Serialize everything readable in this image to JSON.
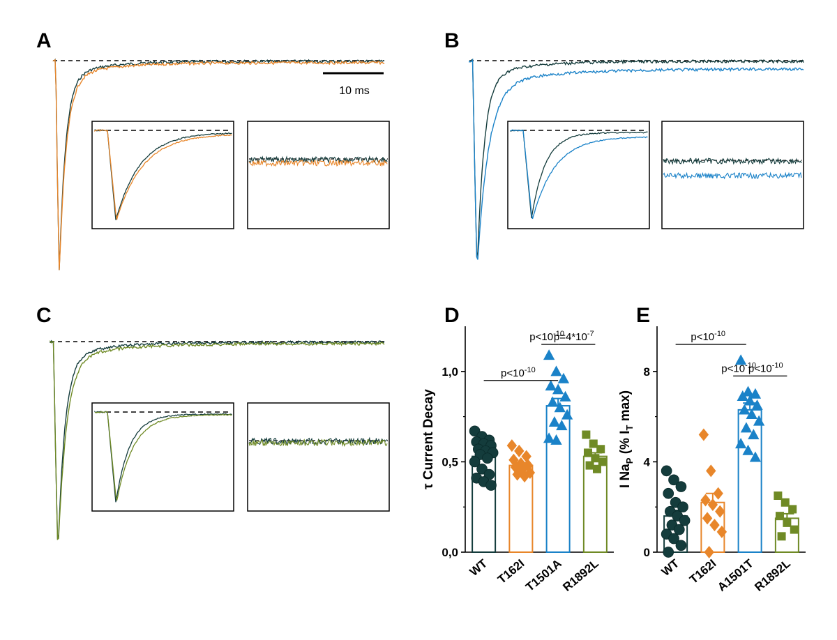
{
  "colors": {
    "WT": "#143c3c",
    "T162I": "#e8862a",
    "T1501A": "#1a82c8",
    "A1501T": "#1a82c8",
    "R1892L": "#6f8a25",
    "axis": "#000000"
  },
  "panels": {
    "A": {
      "label": "A",
      "scale_bar": "10 ms"
    },
    "B": {
      "label": "B"
    },
    "C": {
      "label": "C"
    },
    "D": {
      "label": "D"
    },
    "E": {
      "label": "E"
    }
  },
  "chart_data": [
    {
      "panel": "D",
      "type": "bar",
      "ylabel": "τ Current Decay",
      "ylim": [
        0,
        1.25
      ],
      "yticks": [
        0,
        0.5,
        1.0
      ],
      "ytick_labels": [
        "0,0",
        "0,5",
        "1,0"
      ],
      "categories": [
        "WT",
        "T162I",
        "T1501A",
        "R1892L"
      ],
      "series": [
        {
          "category": "WT",
          "marker": "circle",
          "color_key": "WT",
          "mean": 0.53,
          "sem": 0.025,
          "points": [
            0.67,
            0.64,
            0.62,
            0.61,
            0.6,
            0.59,
            0.57,
            0.56,
            0.55,
            0.54,
            0.52,
            0.5,
            0.46,
            0.43,
            0.41,
            0.39,
            0.37
          ]
        },
        {
          "category": "T162I",
          "marker": "diamond",
          "color_key": "T162I",
          "mean": 0.48,
          "sem": 0.015,
          "points": [
            0.59,
            0.56,
            0.53,
            0.51,
            0.49,
            0.48,
            0.47,
            0.46,
            0.44,
            0.43,
            0.42
          ]
        },
        {
          "category": "T1501A",
          "marker": "triangle",
          "color_key": "T1501A",
          "mean": 0.81,
          "sem": 0.04,
          "points": [
            1.09,
            1.0,
            0.96,
            0.92,
            0.9,
            0.86,
            0.83,
            0.8,
            0.76,
            0.72,
            0.7,
            0.63,
            0.62
          ]
        },
        {
          "category": "R1892L",
          "marker": "square",
          "color_key": "R1892L",
          "mean": 0.53,
          "sem": 0.02,
          "points": [
            0.65,
            0.6,
            0.57,
            0.55,
            0.52,
            0.5,
            0.48,
            0.46
          ]
        }
      ],
      "annotations": [
        {
          "text": "p<10",
          "sup": "-10",
          "from": 0,
          "to": 2,
          "y": 0.95
        },
        {
          "text": "p<10",
          "sup": "-10",
          "from": 1.55,
          "to": 2,
          "y": 1.15
        },
        {
          "text": "p=4*10",
          "sup": "-7",
          "from": 2,
          "to": 3,
          "y": 1.15
        }
      ]
    },
    {
      "panel": "E",
      "type": "bar",
      "ylabel_parts": {
        "a": "I Na",
        "a_sub": "P",
        "b": " (% I",
        "b_sub": "T",
        "c": " max)"
      },
      "ylim": [
        0,
        10
      ],
      "yticks": [
        0,
        4,
        8
      ],
      "ytick_labels": [
        "0",
        "4",
        "8"
      ],
      "categories": [
        "WT",
        "T162I",
        "A1501T",
        "R1892L"
      ],
      "series": [
        {
          "category": "WT",
          "marker": "circle",
          "color_key": "WT",
          "mean": 1.6,
          "sem": 0.25,
          "points": [
            3.6,
            3.2,
            2.9,
            2.6,
            2.2,
            2.0,
            1.8,
            1.6,
            1.4,
            1.2,
            1.0,
            0.8,
            0.6,
            0.3,
            0.0
          ]
        },
        {
          "category": "T162I",
          "marker": "diamond",
          "color_key": "T162I",
          "mean": 2.2,
          "sem": 0.4,
          "points": [
            5.2,
            3.6,
            2.6,
            2.3,
            2.1,
            1.8,
            1.5,
            1.2,
            0.9,
            0.0
          ]
        },
        {
          "category": "A1501T",
          "marker": "triangle",
          "color_key": "A1501T",
          "mean": 6.3,
          "sem": 0.3,
          "points": [
            8.5,
            7.1,
            7.0,
            6.9,
            6.7,
            6.5,
            6.3,
            6.1,
            5.8,
            5.5,
            5.2,
            4.8,
            4.5,
            4.2
          ]
        },
        {
          "category": "R1892L",
          "marker": "square",
          "color_key": "R1892L",
          "mean": 1.5,
          "sem": 0.2,
          "points": [
            2.5,
            2.2,
            1.9,
            1.6,
            1.3,
            1.0,
            0.7
          ]
        }
      ],
      "annotations": [
        {
          "text": "p<10",
          "sup": "-10",
          "from": 0,
          "to": 1.9,
          "y": 9.2
        },
        {
          "text": "p<10",
          "sup": "-10",
          "from": 1.55,
          "to": 2,
          "y": 7.8
        },
        {
          "text": "p<10",
          "sup": "-10",
          "from": 2,
          "to": 3,
          "y": 7.8
        }
      ]
    }
  ]
}
